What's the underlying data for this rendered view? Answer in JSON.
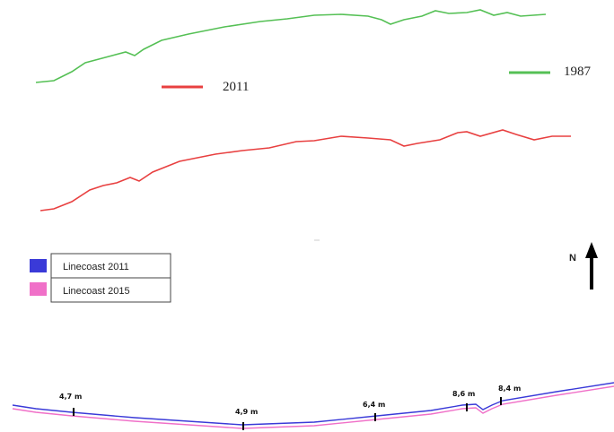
{
  "top_legend": [
    {
      "label": "2011",
      "color": "#e84040"
    },
    {
      "label": "1987",
      "color": "#55c055"
    }
  ],
  "bottom_legend": [
    {
      "label": "Linecoast 2011",
      "color": "#3a3ad8"
    },
    {
      "label": "Linecoast 2015",
      "color": "#f070c8"
    }
  ],
  "north": "N",
  "distance_labels": [
    "4,7 m",
    "4,9 m",
    "6,4 m",
    "8,6 m",
    "8,4 m"
  ]
}
